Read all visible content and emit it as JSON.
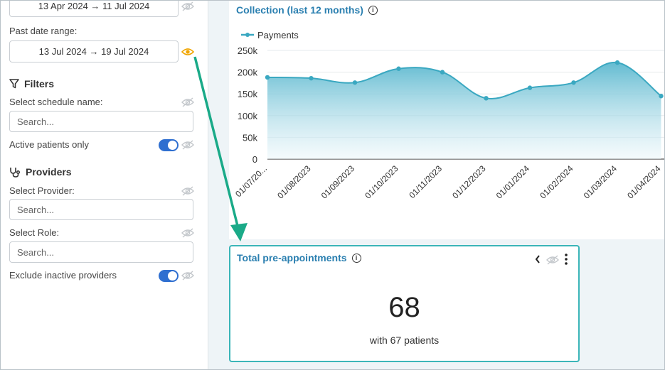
{
  "sidebar": {
    "current_date_range": "13 Apr 2024 → 11 Jul 2024",
    "past_date_range_label": "Past date range:",
    "past_date_range": "13 Jul 2024 → 19 Jul 2024",
    "filters_title": "Filters",
    "schedule_label": "Select schedule name:",
    "schedule_placeholder": "Search...",
    "active_patients_label": "Active patients only",
    "active_patients_on": true,
    "providers_title": "Providers",
    "provider_label": "Select Provider:",
    "provider_placeholder": "Search...",
    "role_label": "Select Role:",
    "role_placeholder": "Search...",
    "exclude_inactive_label": "Exclude inactive providers",
    "exclude_inactive_on": true
  },
  "chart_card": {
    "title": "Collection (last 12 months)"
  },
  "chart_data": {
    "type": "area",
    "legend": [
      "Payments"
    ],
    "categories": [
      "01/07/20...",
      "01/08/2023",
      "01/09/2023",
      "01/10/2023",
      "01/11/2023",
      "01/12/2023",
      "01/01/2024",
      "01/02/2024",
      "01/03/2024",
      "01/04/2024"
    ],
    "series": [
      {
        "name": "Payments",
        "values": [
          188000,
          186000,
          176000,
          208000,
          200000,
          140000,
          164000,
          176000,
          222000,
          145000
        ]
      }
    ],
    "y_ticks": [
      "250k",
      "200k",
      "150k",
      "100k",
      "50k",
      "0"
    ],
    "ylim": [
      0,
      250000
    ],
    "grid": true,
    "legend_position": "top-left",
    "colors": {
      "line": "#3aa8c1",
      "fill_top": "#5bb8cf",
      "fill_bottom": "#eaf6fa"
    }
  },
  "kpi_card": {
    "title": "Total pre-appointments",
    "value": "68",
    "subtitle": "with 67 patients"
  },
  "colors": {
    "accent": "#2a7fb0",
    "toggle": "#2f6fd0",
    "arrow": "#1aaa88",
    "visible_eye": "#f0a500",
    "card_border": "#3ab5b8"
  }
}
